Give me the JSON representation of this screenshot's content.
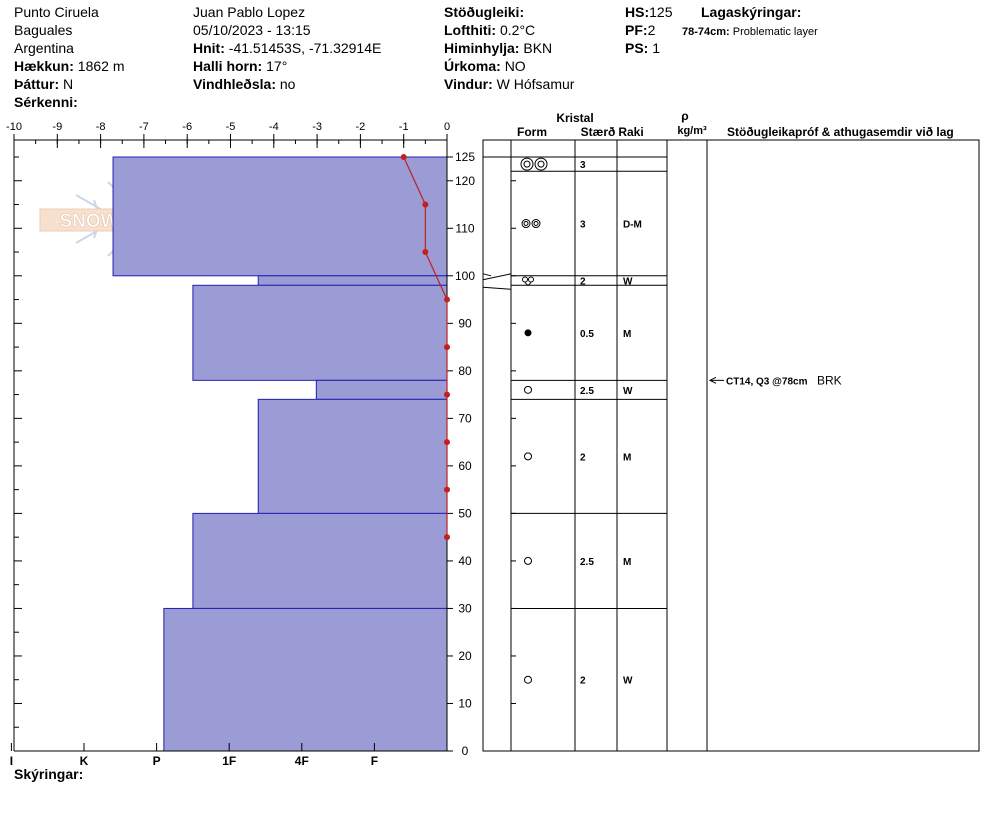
{
  "header": {
    "location": "Punto Ciruela",
    "region": "Baguales",
    "country": "Argentina",
    "elevation_label": "Hækkun:",
    "elevation_value": "1862 m",
    "aspect_label": "Þáttur:",
    "aspect_value": "N",
    "features_label": "Sérkenni:",
    "observer": "Juan Pablo  Lopez",
    "datetime": "05/10/2023 - 13:15",
    "coords_label": "Hnit:",
    "coords_value": "-41.51453S, -71.32914E",
    "slope_label": "Halli horn:",
    "slope_value": "17°",
    "wind_loading_label": "Vindhleðsla:",
    "wind_loading_value": "no",
    "stability_label": "Stöðugleiki:",
    "air_temp_label": "Lofthiti:",
    "air_temp_value": "0.2°C",
    "sky_label": "Himinhylja:",
    "sky_value": "BKN",
    "precip_label": "Úrkoma:",
    "precip_value": "NO",
    "wind_label": "Vindur:",
    "wind_value": "W Hófsamur",
    "hs_label": "HS:",
    "hs_value": "125",
    "pf_label": "PF:",
    "pf_value": "2",
    "ps_label": "PS:",
    "ps_value": "1",
    "layer_notes_label": "Lagaskýringar:",
    "layer_notes_range": "78-74cm:",
    "layer_notes_text": "Problematic layer"
  },
  "logo_text": "SNOWPILOT",
  "footer_label": "Skýringar:",
  "table_headers": {
    "crystal": "Kristal",
    "form": "Form",
    "size": "Stærð",
    "moisture": "Raki",
    "rho": "ρ",
    "density_unit": "kg/m³",
    "tests": "Stöðugleikapróf & athugasemdir við lag"
  },
  "test_note": {
    "depth": 78,
    "text": "CT14, Q3 @78cm",
    "result": "BRK"
  },
  "colors": {
    "hardness_fill": "#9b9bd6",
    "hardness_edge": "#2020b0",
    "temp_line": "#c02020"
  },
  "chart_data": {
    "type": "bar",
    "temperature_axis": {
      "range": [
        -10,
        0
      ],
      "ticks": [
        "-10",
        "-9",
        "-8",
        "-7",
        "-6",
        "-5",
        "-4",
        "-3",
        "-2",
        "-1",
        "0"
      ]
    },
    "height_axis": {
      "range": [
        0,
        125
      ],
      "ticks": [
        "0",
        "10",
        "20",
        "30",
        "40",
        "50",
        "60",
        "70",
        "80",
        "90",
        "100",
        "110",
        "120",
        "125"
      ]
    },
    "hardness_axis": {
      "ticks": [
        "I",
        "K",
        "P",
        "1F",
        "4F",
        "F"
      ],
      "tick_positions": [
        6,
        5,
        4,
        3,
        2,
        1
      ]
    },
    "hardness_layers": [
      {
        "bottom": 100,
        "top": 125,
        "hardness": 4.6
      },
      {
        "bottom": 98,
        "top": 100,
        "hardness": 2.6
      },
      {
        "bottom": 78,
        "top": 98,
        "hardness": 3.5
      },
      {
        "bottom": 74,
        "top": 78,
        "hardness": 1.8
      },
      {
        "bottom": 50,
        "top": 74,
        "hardness": 2.6
      },
      {
        "bottom": 30,
        "top": 50,
        "hardness": 3.5
      },
      {
        "bottom": 0,
        "top": 30,
        "hardness": 3.9
      }
    ],
    "temperature_profile": [
      {
        "height": 125,
        "temp": -1.0
      },
      {
        "height": 115,
        "temp": -0.5
      },
      {
        "height": 105,
        "temp": -0.5
      },
      {
        "height": 95,
        "temp": 0.0
      },
      {
        "height": 85,
        "temp": 0.0
      },
      {
        "height": 75,
        "temp": 0.0
      },
      {
        "height": 65,
        "temp": 0.0
      },
      {
        "height": 55,
        "temp": 0.0
      },
      {
        "height": 45,
        "temp": 0.0
      }
    ],
    "layers_table": [
      {
        "top": 125,
        "bottom": 122,
        "form": "large-double-ring",
        "size": "3",
        "moisture": ""
      },
      {
        "top": 122,
        "bottom": 100,
        "form": "double-ring",
        "size": "3",
        "moisture": "D-M"
      },
      {
        "top": 100,
        "bottom": 98,
        "form": "faceted-small",
        "size": "2",
        "moisture": "W"
      },
      {
        "top": 98,
        "bottom": 78,
        "form": "filled-dot",
        "size": "0.5",
        "moisture": "M"
      },
      {
        "top": 78,
        "bottom": 74,
        "form": "ring",
        "size": "2.5",
        "moisture": "W"
      },
      {
        "top": 74,
        "bottom": 50,
        "form": "ring",
        "size": "2",
        "moisture": "M"
      },
      {
        "top": 50,
        "bottom": 30,
        "form": "ring",
        "size": "2.5",
        "moisture": "M"
      },
      {
        "top": 30,
        "bottom": 0,
        "form": "ring",
        "size": "2",
        "moisture": "W"
      }
    ]
  }
}
